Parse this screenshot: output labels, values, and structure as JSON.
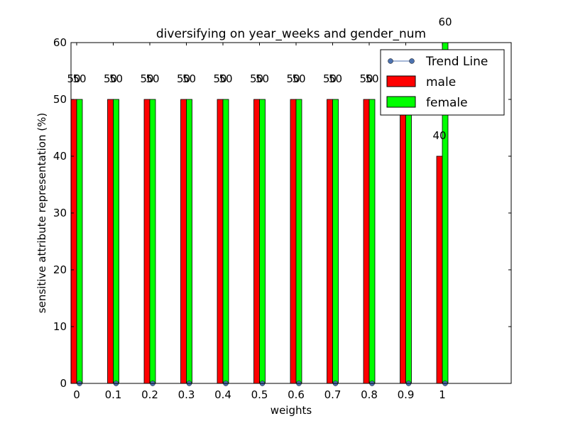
{
  "chart_data": {
    "type": "bar",
    "title": "diversifying on year_weeks and gender_num",
    "xlabel": "weights",
    "ylabel": "sensitive attribute representation (%)",
    "categories": [
      "0",
      "0.1",
      "0.2",
      "0.3",
      "0.4",
      "0.5",
      "0.6",
      "0.7",
      "0.8",
      "0.9",
      "1"
    ],
    "ylim": [
      0,
      60
    ],
    "yticks": [
      "0",
      "10",
      "20",
      "30",
      "40",
      "50",
      "60"
    ],
    "grid": false,
    "legend_position": "top-right",
    "series": [
      {
        "name": "male",
        "color": "#ff0000",
        "values": [
          50,
          50,
          50,
          50,
          50,
          50,
          50,
          50,
          50,
          50,
          40
        ]
      },
      {
        "name": "female",
        "color": "#00ff00",
        "values": [
          50,
          50,
          50,
          50,
          50,
          50,
          50,
          50,
          50,
          50,
          60
        ]
      }
    ],
    "trend_line": {
      "name": "Trend Line",
      "color": "#4c72b0",
      "values": [
        0,
        0,
        0,
        0,
        0,
        0,
        0,
        0,
        0,
        0,
        0
      ]
    },
    "data_labels": {
      "male": [
        "50",
        "50",
        "50",
        "50",
        "50",
        "50",
        "50",
        "50",
        "50",
        "50",
        "40"
      ],
      "female": [
        "50",
        "50",
        "50",
        "50",
        "50",
        "50",
        "50",
        "50",
        "50",
        "50",
        "60"
      ]
    },
    "legend": [
      "Trend Line",
      "male",
      "female"
    ]
  }
}
